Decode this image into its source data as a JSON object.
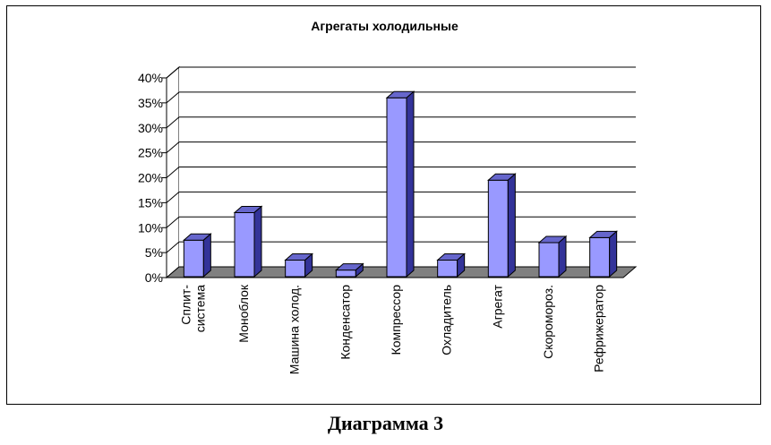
{
  "chart_data": {
    "type": "bar",
    "title": "Агрегаты холодильные",
    "categories": [
      [
        "Сплит-",
        "система"
      ],
      [
        "Моноблок"
      ],
      [
        "Машина холод."
      ],
      [
        "Конденсатор"
      ],
      [
        "Компрессор"
      ],
      [
        "Охладитель"
      ],
      [
        "Агрегат"
      ],
      [
        "Скоромороз."
      ],
      [
        "Рефрижератор"
      ]
    ],
    "values": [
      7.5,
      13,
      3.5,
      1.5,
      36,
      3.5,
      19.5,
      7,
      8
    ],
    "ylim": [
      0,
      40
    ],
    "ytick_labels": [
      "0%",
      "5%",
      "10%",
      "15%",
      "20%",
      "25%",
      "30%",
      "35%",
      "40%"
    ],
    "grid": true,
    "legend": "none",
    "colors": {
      "bar_front": "#9999FF",
      "bar_top": "#6666CC",
      "bar_side": "#333399",
      "floor": "#808080"
    }
  },
  "caption": "Диаграмма 3"
}
